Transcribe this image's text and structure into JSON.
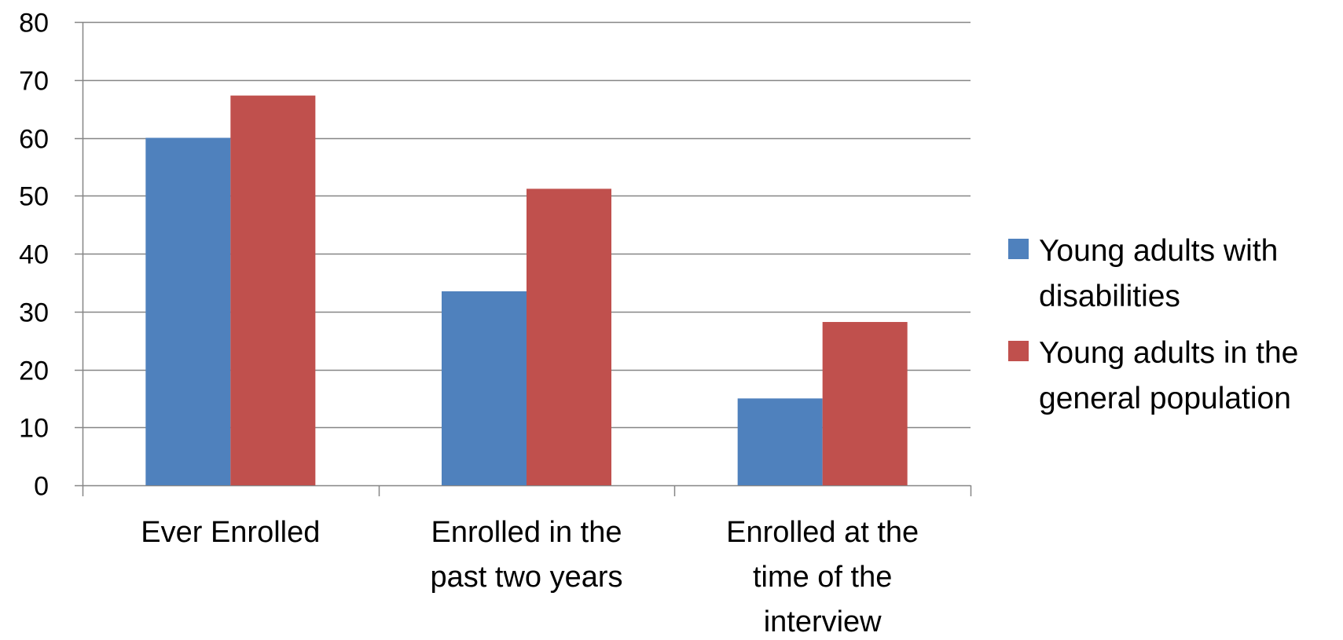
{
  "chart_data": {
    "type": "bar",
    "categories": [
      [
        "Ever Enrolled"
      ],
      [
        "Enrolled in the",
        "past two years"
      ],
      [
        "Enrolled at the",
        "time of the",
        "interview"
      ]
    ],
    "series": [
      {
        "name": [
          "Young adults with",
          "disabilities"
        ],
        "color": "#4F81BD",
        "values": [
          60,
          33.5,
          15
        ]
      },
      {
        "name": [
          "Young adults in the",
          "general population"
        ],
        "color": "#C0504D",
        "values": [
          67.3,
          51.2,
          28.2
        ]
      }
    ],
    "ylim": [
      0,
      80
    ],
    "yticks": [
      0,
      10,
      20,
      30,
      40,
      50,
      60,
      70,
      80
    ],
    "grid": true,
    "legend_position": "right"
  }
}
